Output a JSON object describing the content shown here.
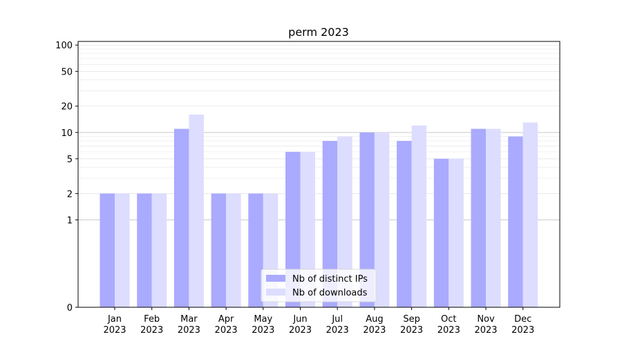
{
  "chart_data": {
    "type": "bar",
    "title": "perm 2023",
    "xlabel": "",
    "ylabel": "",
    "y_scale": "symlog",
    "ylim": [
      0,
      110
    ],
    "y_ticks": [
      0,
      1,
      2,
      5,
      10,
      20,
      50,
      100
    ],
    "categories": [
      [
        "Jan",
        "2023"
      ],
      [
        "Feb",
        "2023"
      ],
      [
        "Mar",
        "2023"
      ],
      [
        "Apr",
        "2023"
      ],
      [
        "May",
        "2023"
      ],
      [
        "Jun",
        "2023"
      ],
      [
        "Jul",
        "2023"
      ],
      [
        "Aug",
        "2023"
      ],
      [
        "Sep",
        "2023"
      ],
      [
        "Oct",
        "2023"
      ],
      [
        "Nov",
        "2023"
      ],
      [
        "Dec",
        "2023"
      ]
    ],
    "series": [
      {
        "name": "Nb of distinct IPs",
        "color": "#aaaaff",
        "values": [
          2,
          2,
          11,
          2,
          2,
          6,
          8,
          10,
          8,
          5,
          11,
          9
        ]
      },
      {
        "name": "Nb of downloads",
        "color": "#ddddff",
        "values": [
          2,
          2,
          16,
          2,
          2,
          6,
          9,
          10,
          12,
          5,
          11,
          13
        ]
      }
    ],
    "legend_position": "bottom-center",
    "grid": true
  }
}
